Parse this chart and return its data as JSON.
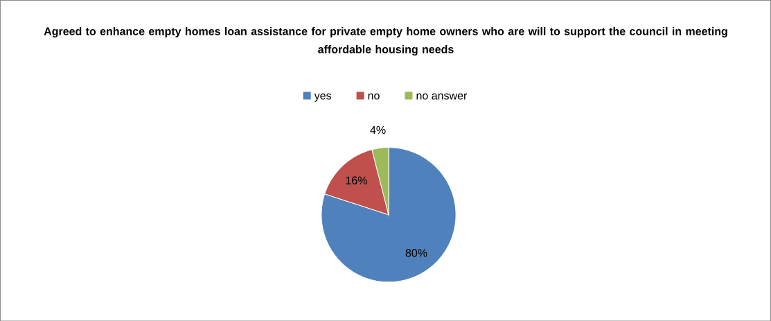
{
  "chart_data": {
    "type": "pie",
    "title": "Agreed to enhance empty homes loan assistance for private empty home owners who are will to support the council in meeting affordable housing needs",
    "categories": [
      "yes",
      "no",
      "no answer"
    ],
    "values": [
      80,
      16,
      4
    ],
    "colors": [
      "#4f81bd",
      "#c0504d",
      "#9bbb59"
    ],
    "value_labels": [
      "80%",
      "16%",
      "4%"
    ],
    "legend": "top"
  }
}
